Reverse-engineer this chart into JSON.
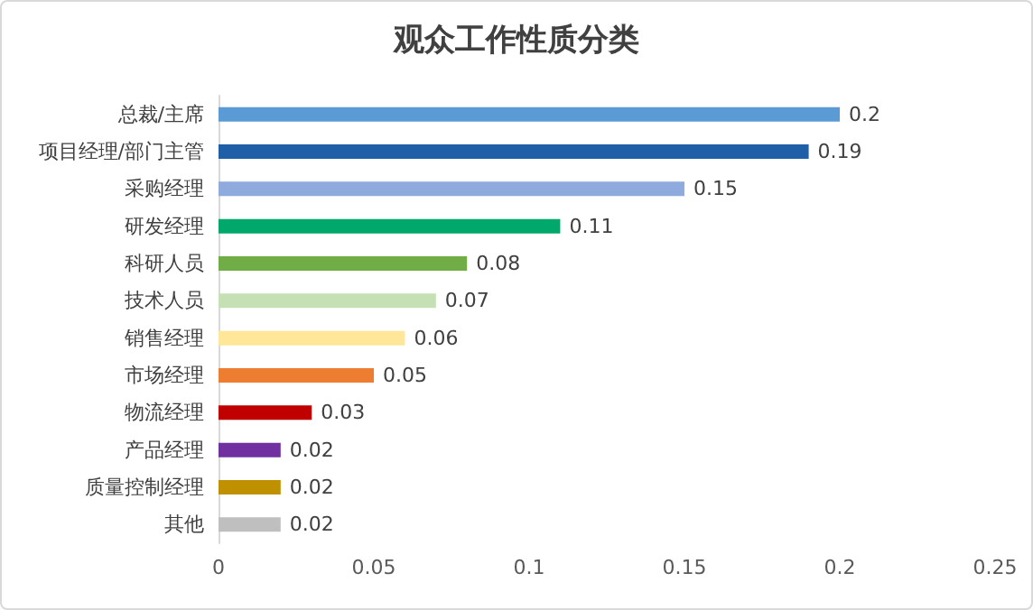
{
  "chart_data": {
    "type": "bar",
    "title": "观众工作性质分类",
    "orientation": "horizontal",
    "categories": [
      "总裁/主席",
      "项目经理/部门主管",
      "采购经理",
      "研发经理",
      "科研人员",
      "技术人员",
      "销售经理",
      "市场经理",
      "物流经理",
      "产品经理",
      "质量控制经理",
      "其他"
    ],
    "values": [
      0.2,
      0.19,
      0.15,
      0.11,
      0.08,
      0.07,
      0.06,
      0.05,
      0.03,
      0.02,
      0.02,
      0.02
    ],
    "colors": [
      "#5b9bd5",
      "#1f5fa8",
      "#8faadc",
      "#00a86b",
      "#70ad47",
      "#c5e0b4",
      "#ffe699",
      "#ed7d31",
      "#c00000",
      "#7030a0",
      "#bf9000",
      "#bfbfbf"
    ],
    "xlim": [
      0,
      0.25
    ],
    "xticks": [
      0,
      0.05,
      0.1,
      0.15,
      0.2,
      0.25
    ],
    "data_labels": true
  }
}
